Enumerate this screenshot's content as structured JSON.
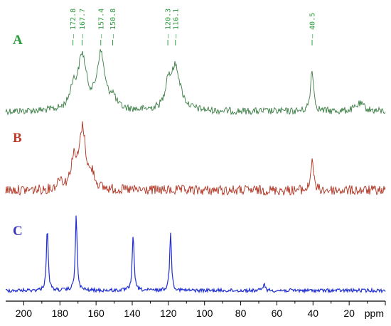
{
  "chart_data": {
    "type": "line",
    "x_unit": "ppm",
    "x_direction": "reversed",
    "xlim": [
      210,
      0
    ],
    "x_ticks": [
      200,
      180,
      160,
      140,
      120,
      100,
      80,
      60,
      40,
      20
    ],
    "series": [
      {
        "name": "A",
        "color": "#3a7d44",
        "label_color": "#2e9e3e",
        "peaks": [
          {
            "ppm": 167.7,
            "height": 0.85,
            "width": 2.8
          },
          {
            "ppm": 172.8,
            "height": 0.3,
            "width": 2.0
          },
          {
            "ppm": 157.4,
            "height": 0.88,
            "width": 2.6
          },
          {
            "ppm": 150.8,
            "height": 0.18,
            "width": 2.0
          },
          {
            "ppm": 116.1,
            "height": 0.7,
            "width": 3.2
          },
          {
            "ppm": 120.3,
            "height": 0.35,
            "width": 1.6
          },
          {
            "ppm": 40.5,
            "height": 0.68,
            "width": 1.0
          },
          {
            "ppm": 14,
            "height": 0.12,
            "width": 3.0
          }
        ],
        "peak_labels": [
          "172.8",
          "167.7",
          "157.4",
          "150.8",
          "120.3",
          "116.1",
          "40.5"
        ],
        "peak_label_positions": [
          172.8,
          167.7,
          157.4,
          150.8,
          120.3,
          116.1,
          40.5
        ]
      },
      {
        "name": "B",
        "color": "#b0301e",
        "label_color": "#c0392b",
        "peaks": [
          {
            "ppm": 167.5,
            "height": 1.0,
            "width": 2.2
          },
          {
            "ppm": 172.5,
            "height": 0.45,
            "width": 1.8
          },
          {
            "ppm": 162,
            "height": 0.2,
            "width": 1.6
          },
          {
            "ppm": 180,
            "height": 0.18,
            "width": 1.4
          },
          {
            "ppm": 40.5,
            "height": 0.55,
            "width": 0.8
          }
        ]
      },
      {
        "name": "C",
        "color": "#1f2fd1",
        "label_color": "#3a34b8",
        "peaks": [
          {
            "ppm": 187.0,
            "height": 1.0,
            "width": 0.6
          },
          {
            "ppm": 171.0,
            "height": 1.2,
            "width": 0.6
          },
          {
            "ppm": 139.5,
            "height": 0.9,
            "width": 0.6
          },
          {
            "ppm": 118.8,
            "height": 0.94,
            "width": 0.6
          },
          {
            "ppm": 67.0,
            "height": 0.14,
            "width": 0.5
          }
        ]
      }
    ]
  }
}
